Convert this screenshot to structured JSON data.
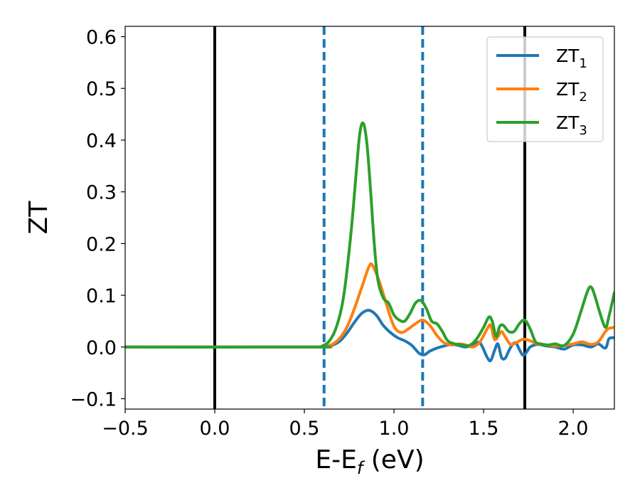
{
  "chart_data": {
    "type": "line",
    "xlabel_base": "E-E",
    "xlabel_sub": "f",
    "xlabel_unit": " (eV)",
    "ylabel": "ZT",
    "xlim": [
      -0.5,
      2.23
    ],
    "ylim": [
      -0.12,
      0.62
    ],
    "xticks": [
      -0.5,
      0.0,
      0.5,
      1.0,
      1.5,
      2.0
    ],
    "xtick_labels": [
      "−0.5",
      "0.0",
      "0.5",
      "1.0",
      "1.5",
      "2.0"
    ],
    "yticks": [
      -0.1,
      0.0,
      0.1,
      0.2,
      0.3,
      0.4,
      0.5,
      0.6
    ],
    "ytick_labels": [
      "−0.1",
      "0.0",
      "0.1",
      "0.2",
      "0.3",
      "0.4",
      "0.5",
      "0.6"
    ],
    "grid": false,
    "legend_position": "top-right",
    "vertical_lines": [
      {
        "x": 0.0,
        "color": "#000000",
        "style": "solid"
      },
      {
        "x": 1.73,
        "color": "#000000",
        "style": "solid"
      },
      {
        "x": 0.61,
        "color": "#1f77b4",
        "style": "dashed"
      },
      {
        "x": 1.16,
        "color": "#1f77b4",
        "style": "dashed"
      }
    ],
    "series": [
      {
        "name": "ZT",
        "sub": "1",
        "color": "#1f77b4",
        "x": [
          -0.5,
          0.55,
          0.62,
          0.66,
          0.7,
          0.74,
          0.78,
          0.82,
          0.86,
          0.9,
          0.94,
          0.98,
          1.02,
          1.06,
          1.1,
          1.14,
          1.17,
          1.2,
          1.24,
          1.28,
          1.32,
          1.36,
          1.4,
          1.44,
          1.48,
          1.52,
          1.54,
          1.56,
          1.58,
          1.6,
          1.62,
          1.64,
          1.66,
          1.68,
          1.7,
          1.72,
          1.74,
          1.76,
          1.8,
          1.85,
          1.9,
          1.95,
          2.0,
          2.05,
          2.1,
          2.14,
          2.18,
          2.2,
          2.23
        ],
        "y": [
          0.0,
          0.0,
          0.001,
          0.004,
          0.012,
          0.028,
          0.048,
          0.065,
          0.071,
          0.062,
          0.042,
          0.028,
          0.018,
          0.012,
          0.003,
          -0.012,
          -0.015,
          -0.008,
          -0.002,
          0.002,
          0.005,
          0.003,
          0.0,
          0.004,
          0.008,
          -0.02,
          -0.026,
          -0.008,
          0.006,
          -0.02,
          -0.022,
          -0.008,
          0.004,
          0.008,
          -0.005,
          -0.016,
          -0.01,
          0.0,
          0.005,
          0.002,
          0.0,
          -0.004,
          0.004,
          0.004,
          0.0,
          0.006,
          -0.002,
          0.016,
          0.018
        ]
      },
      {
        "name": "ZT",
        "sub": "2",
        "color": "#ff7f0e",
        "x": [
          -0.5,
          0.55,
          0.62,
          0.66,
          0.7,
          0.74,
          0.78,
          0.82,
          0.86,
          0.88,
          0.92,
          0.96,
          1.0,
          1.04,
          1.08,
          1.12,
          1.16,
          1.2,
          1.24,
          1.28,
          1.32,
          1.36,
          1.4,
          1.44,
          1.48,
          1.52,
          1.54,
          1.56,
          1.58,
          1.6,
          1.62,
          1.65,
          1.68,
          1.72,
          1.76,
          1.8,
          1.85,
          1.9,
          1.95,
          2.0,
          2.05,
          2.1,
          2.14,
          2.18,
          2.2,
          2.23
        ],
        "y": [
          0.0,
          0.0,
          0.001,
          0.006,
          0.018,
          0.04,
          0.075,
          0.115,
          0.155,
          0.158,
          0.125,
          0.08,
          0.04,
          0.028,
          0.035,
          0.045,
          0.052,
          0.042,
          0.022,
          0.008,
          0.004,
          0.006,
          0.004,
          0.0,
          0.01,
          0.035,
          0.042,
          0.015,
          0.02,
          0.03,
          0.02,
          0.005,
          0.008,
          0.015,
          0.012,
          0.006,
          0.004,
          0.002,
          0.003,
          0.006,
          0.01,
          0.005,
          0.01,
          0.03,
          0.036,
          0.038
        ]
      },
      {
        "name": "ZT",
        "sub": "3",
        "color": "#2ca02c",
        "x": [
          -0.5,
          0.55,
          0.6,
          0.64,
          0.68,
          0.72,
          0.76,
          0.79,
          0.81,
          0.83,
          0.85,
          0.87,
          0.89,
          0.91,
          0.94,
          0.97,
          1.0,
          1.03,
          1.06,
          1.09,
          1.12,
          1.15,
          1.18,
          1.21,
          1.24,
          1.27,
          1.3,
          1.34,
          1.38,
          1.42,
          1.46,
          1.5,
          1.53,
          1.55,
          1.57,
          1.59,
          1.61,
          1.64,
          1.67,
          1.7,
          1.73,
          1.76,
          1.79,
          1.82,
          1.86,
          1.9,
          1.95,
          2.0,
          2.04,
          2.08,
          2.1,
          2.12,
          2.15,
          2.18,
          2.2,
          2.23
        ],
        "y": [
          0.0,
          0.0,
          0.002,
          0.012,
          0.04,
          0.1,
          0.22,
          0.34,
          0.415,
          0.432,
          0.39,
          0.3,
          0.2,
          0.13,
          0.095,
          0.085,
          0.062,
          0.052,
          0.05,
          0.065,
          0.085,
          0.09,
          0.075,
          0.05,
          0.045,
          0.03,
          0.012,
          0.006,
          0.004,
          0.003,
          0.015,
          0.038,
          0.058,
          0.048,
          0.02,
          0.04,
          0.042,
          0.03,
          0.03,
          0.045,
          0.052,
          0.035,
          0.01,
          0.006,
          0.004,
          0.006,
          0.003,
          0.025,
          0.065,
          0.108,
          0.116,
          0.1,
          0.065,
          0.038,
          0.06,
          0.105
        ]
      }
    ]
  }
}
